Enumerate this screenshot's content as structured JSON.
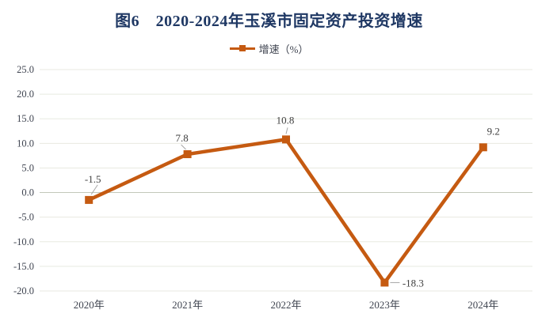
{
  "title": "图6　2020-2024年玉溪市固定资产投资增速",
  "legend": {
    "label": "增速（%）"
  },
  "colors": {
    "series": "#C55A11",
    "title": "#1F3864",
    "grid": "#E8EAE0",
    "zero_axis": "#C3C8BA",
    "tick_text": "#3F4450",
    "data_label_text": "#404040",
    "leader_line": "#A6A6A6",
    "background": "#FFFFFF"
  },
  "chart_data": {
    "type": "line",
    "title": "图6　2020-2024年玉溪市固定资产投资增速",
    "categories": [
      "2020年",
      "2021年",
      "2022年",
      "2023年",
      "2024年"
    ],
    "series": [
      {
        "name": "增速（%）",
        "values": [
          -1.5,
          7.8,
          10.8,
          -18.3,
          9.2
        ]
      }
    ],
    "data_labels": [
      "-1.5",
      "7.8",
      "10.8",
      "-18.3",
      "9.2"
    ],
    "ylim": [
      -20,
      25
    ],
    "ytick_step": 5,
    "yticks": [
      "25.0",
      "20.0",
      "15.0",
      "10.0",
      "5.0",
      "0.0",
      "-5.0",
      "-10.0",
      "-15.0",
      "-20.0"
    ],
    "grid": true,
    "legend_position": "top",
    "marker": "square"
  }
}
